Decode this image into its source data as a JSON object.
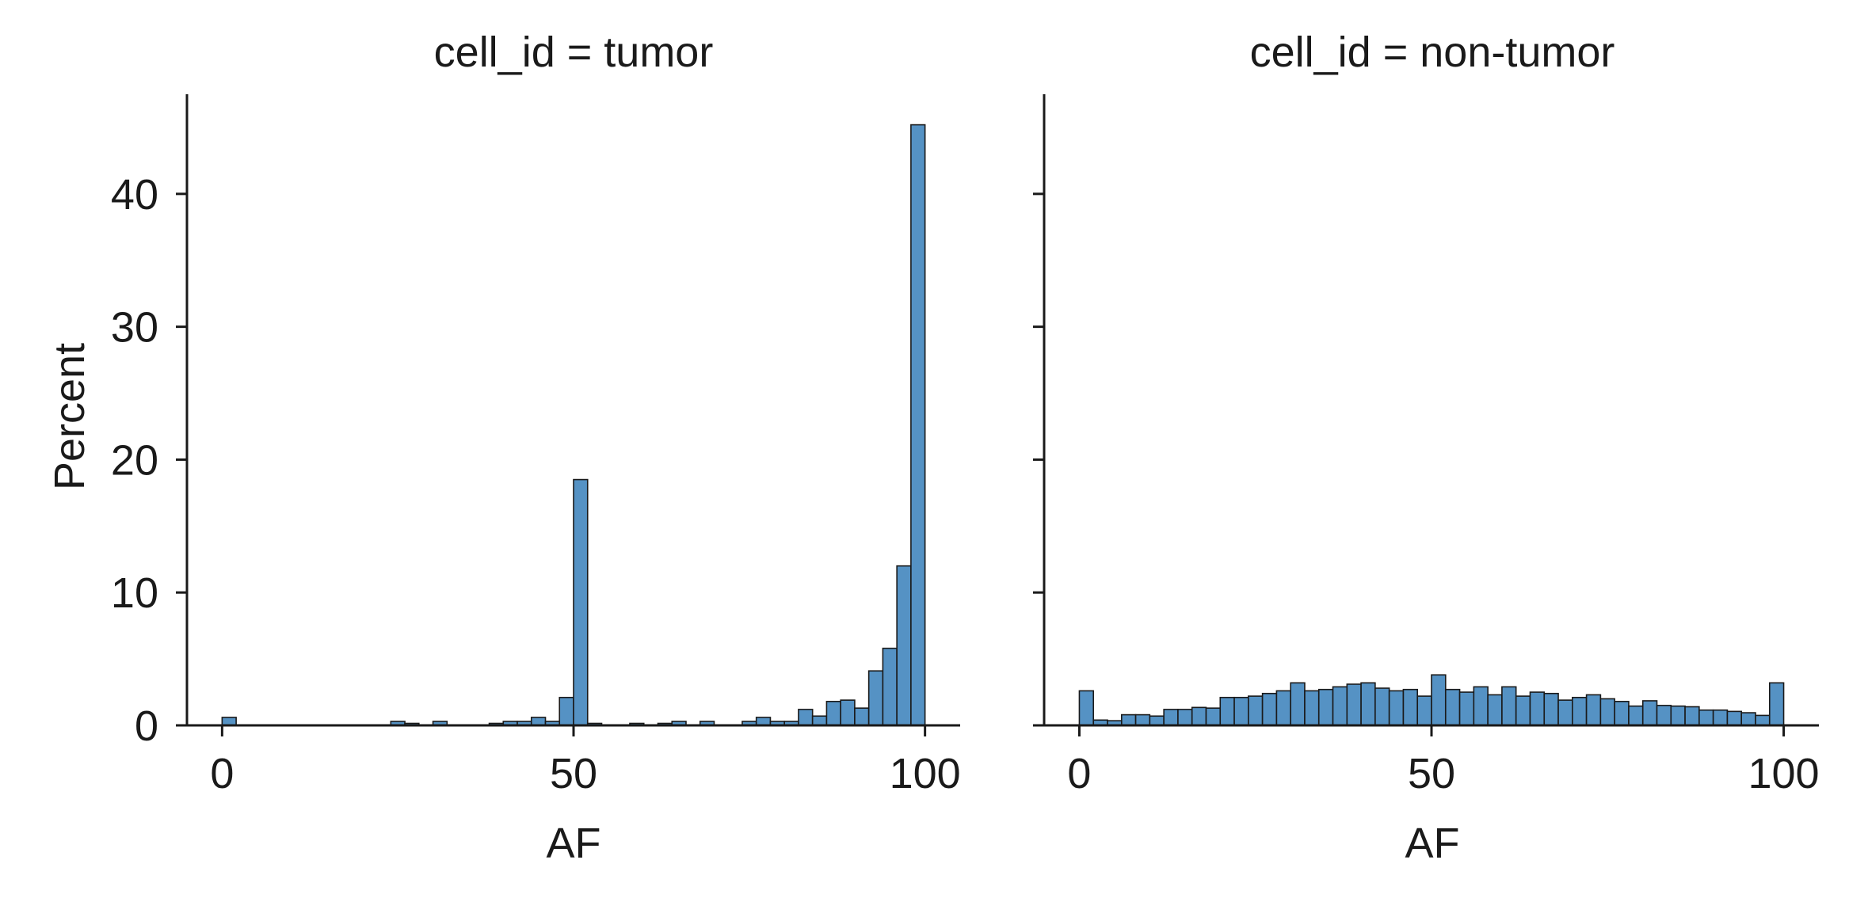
{
  "figure": {
    "ylabel": "Percent"
  },
  "chart_data": [
    {
      "type": "bar",
      "title": "cell_id = tumor",
      "xlabel": "AF",
      "ylabel": "Percent",
      "xlim": [
        -5,
        105
      ],
      "ylim": [
        0,
        47.5
      ],
      "xticks": [
        0,
        50,
        100
      ],
      "yticks": [
        0,
        10,
        20,
        30,
        40
      ],
      "bin_width": 2,
      "bins_start": [
        0,
        24,
        26,
        30,
        38,
        40,
        42,
        44,
        46,
        48,
        50,
        52,
        58,
        62,
        64,
        68,
        74,
        76,
        78,
        80,
        82,
        84,
        86,
        88,
        90,
        92,
        94,
        96,
        98
      ],
      "values": [
        0.6,
        0.3,
        0.15,
        0.3,
        0.15,
        0.3,
        0.3,
        0.6,
        0.3,
        2.1,
        18.5,
        0.15,
        0.15,
        0.15,
        0.3,
        0.3,
        0.3,
        0.6,
        0.3,
        0.3,
        1.2,
        0.7,
        1.8,
        1.9,
        1.3,
        4.1,
        5.8,
        12.0,
        45.2
      ],
      "color": "#5592c4",
      "edgecolor": "#1a1a1a",
      "grid": false
    },
    {
      "type": "bar",
      "title": "cell_id = non-tumor",
      "xlabel": "AF",
      "ylabel": "",
      "xlim": [
        -5,
        105
      ],
      "ylim": [
        0,
        47.5
      ],
      "xticks": [
        0,
        50,
        100
      ],
      "yticks": [
        0,
        10,
        20,
        30,
        40
      ],
      "bin_width": 2,
      "bins_start": [
        0,
        2,
        4,
        6,
        8,
        10,
        12,
        14,
        16,
        18,
        20,
        22,
        24,
        26,
        28,
        30,
        32,
        34,
        36,
        38,
        40,
        42,
        44,
        46,
        48,
        50,
        52,
        54,
        56,
        58,
        60,
        62,
        64,
        66,
        68,
        70,
        72,
        74,
        76,
        78,
        80,
        82,
        84,
        86,
        88,
        90,
        92,
        94,
        96,
        98
      ],
      "values": [
        2.6,
        0.4,
        0.35,
        0.8,
        0.8,
        0.7,
        1.2,
        1.2,
        1.35,
        1.3,
        2.1,
        2.1,
        2.2,
        2.4,
        2.6,
        3.2,
        2.6,
        2.7,
        2.9,
        3.1,
        3.2,
        2.8,
        2.6,
        2.7,
        2.2,
        3.8,
        2.7,
        2.5,
        2.9,
        2.3,
        2.9,
        2.2,
        2.5,
        2.4,
        1.9,
        2.1,
        2.3,
        2.0,
        1.8,
        1.45,
        1.85,
        1.5,
        1.45,
        1.4,
        1.15,
        1.15,
        1.05,
        0.95,
        0.75,
        3.2
      ],
      "color": "#5592c4",
      "edgecolor": "#1a1a1a",
      "grid": false
    }
  ]
}
